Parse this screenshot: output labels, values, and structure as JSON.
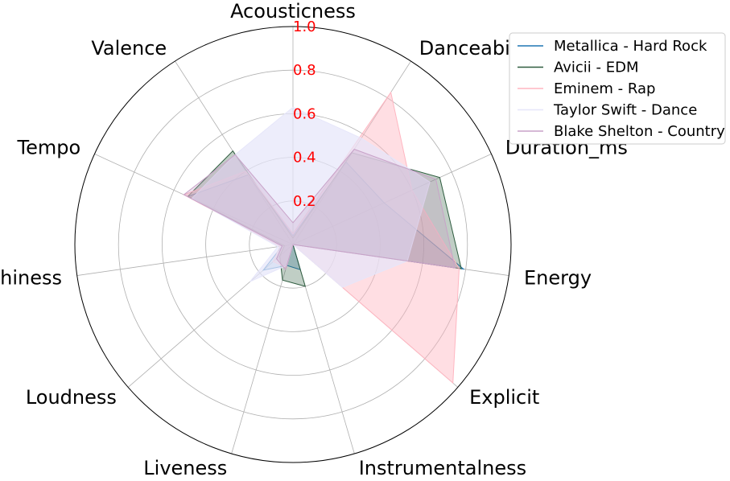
{
  "chart_data": {
    "type": "radar",
    "categories": [
      "Acousticness",
      "Danceability",
      "Duration_ms",
      "Energy",
      "Explicit",
      "Instrumentalness",
      "Liveness",
      "Loudness",
      "Speechiness",
      "Tempo",
      "Valence"
    ],
    "rlim": [
      0,
      1.0
    ],
    "rticks": [
      "0.2",
      "0.4",
      "0.6",
      "0.8",
      "1.0"
    ],
    "rtick_values": [
      0.2,
      0.4,
      0.6,
      0.8,
      1.0
    ],
    "tick_color": "#ff0000",
    "grid": true,
    "legend_position": "top-right",
    "series": [
      {
        "name": "Metallica - Hard Rock",
        "color": "#1f77b4",
        "fill_opacity": 0.25,
        "values": [
          0.04,
          0.45,
          0.46,
          0.79,
          0.0,
          0.12,
          0.1,
          0.18,
          0.05,
          0.53,
          0.38
        ]
      },
      {
        "name": "Avicii - EDM",
        "color": "#2e5c3f",
        "fill_opacity": 0.3,
        "values": [
          0.03,
          0.5,
          0.74,
          0.78,
          0.0,
          0.2,
          0.17,
          0.08,
          0.04,
          0.53,
          0.51
        ]
      },
      {
        "name": "Eminem - Rap",
        "color": "#ffb6c1",
        "fill_opacity": 0.45,
        "values": [
          0.05,
          0.83,
          0.6,
          0.77,
          0.97,
          0.0,
          0.11,
          0.12,
          0.06,
          0.55,
          0.4
        ]
      },
      {
        "name": "Taylor Swift - Dance",
        "color": "#e6e6fa",
        "fill_opacity": 0.7,
        "values": [
          0.63,
          0.58,
          0.69,
          0.53,
          0.3,
          0.0,
          0.1,
          0.26,
          0.07,
          0.51,
          0.49
        ]
      },
      {
        "name": "Blake Shelton - Country",
        "color": "#c8a2c8",
        "fill_opacity": 0.3,
        "values": [
          0.1,
          0.52,
          0.72,
          0.75,
          0.0,
          0.0,
          0.12,
          0.1,
          0.05,
          0.55,
          0.49
        ]
      }
    ]
  }
}
